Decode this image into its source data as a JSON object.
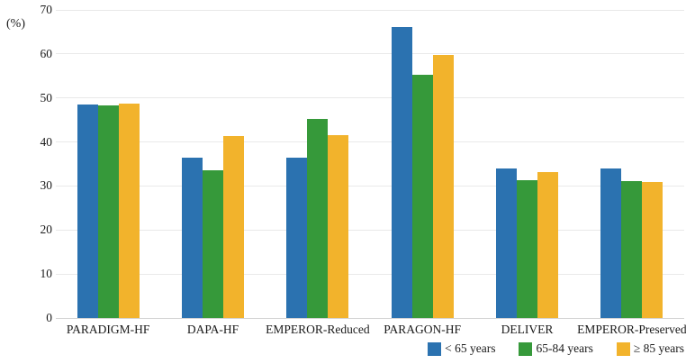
{
  "chart_data": {
    "type": "bar",
    "title": "",
    "xlabel": "",
    "ylabel": "(%)",
    "ylim": [
      0,
      70
    ],
    "yticks": [
      0,
      10,
      20,
      30,
      40,
      50,
      60,
      70
    ],
    "grid": true,
    "legend_position": "bottom-right",
    "categories": [
      "PARADIGM-HF",
      "DAPA-HF",
      "EMPEROR-Reduced",
      "PARAGON-HF",
      "DELIVER",
      "EMPEROR-Preserved"
    ],
    "series": [
      {
        "name": "< 65 years",
        "color": "#2B72B0",
        "values": [
          48.5,
          36.4,
          36.4,
          66.2,
          33.9,
          33.9
        ]
      },
      {
        "name": "65-84 years",
        "color": "#36993A",
        "values": [
          48.3,
          33.6,
          45.2,
          55.2,
          31.4,
          31.1
        ]
      },
      {
        "name": "≥ 85 years",
        "color": "#F2B32C",
        "values": [
          48.7,
          41.4,
          41.5,
          59.8,
          33.2,
          31.0
        ]
      }
    ]
  }
}
